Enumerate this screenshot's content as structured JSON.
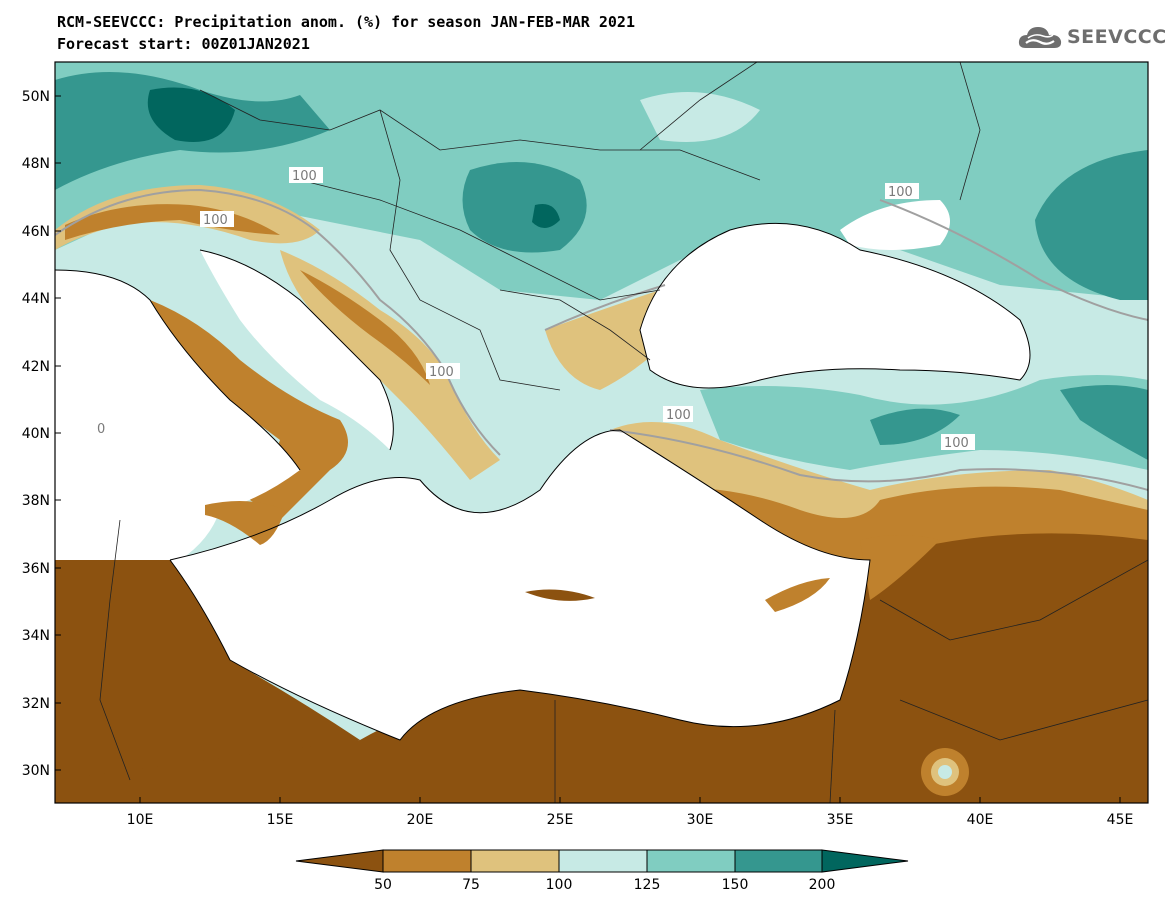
{
  "header": {
    "line1": "RCM-SEEVCCC: Precipitation anom. (%) for season JAN-FEB-MAR 2021",
    "line2": "Forecast start: 00Z01JAN2021"
  },
  "logo": {
    "text": "SEEVCCC",
    "icon": "cloud-logo-icon"
  },
  "map": {
    "lon_range": [
      7,
      46
    ],
    "lat_range": [
      29,
      51
    ],
    "lat_ticks": [
      "50N",
      "48N",
      "46N",
      "44N",
      "42N",
      "40N",
      "38N",
      "36N",
      "34N",
      "32N",
      "30N"
    ],
    "lon_ticks": [
      "10E",
      "15E",
      "20E",
      "25E",
      "30E",
      "35E",
      "40E",
      "45E"
    ],
    "contour_labels": [
      "100",
      "100",
      "100",
      "100",
      "100",
      "100",
      "0"
    ]
  },
  "legend": {
    "labels": [
      "50",
      "75",
      "100",
      "125",
      "150",
      "200"
    ],
    "colors": [
      "#8c5210",
      "#bf812d",
      "#dfc27d",
      "#c7eae5",
      "#80cdc1",
      "#35978f",
      "#01665e"
    ]
  }
}
